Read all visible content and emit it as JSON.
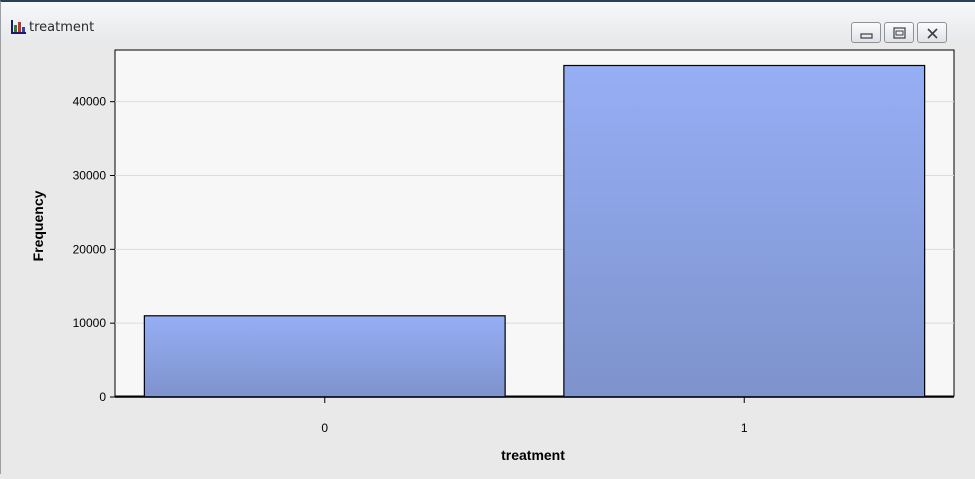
{
  "window": {
    "title": "treatment",
    "icon": "bar-chart-icon",
    "buttons": [
      "minimize",
      "restore",
      "close"
    ]
  },
  "chart_data": {
    "type": "bar",
    "title": "",
    "xlabel": "treatment",
    "ylabel": "Frequency",
    "categories": [
      "0",
      "1"
    ],
    "values": [
      11000,
      44900
    ],
    "ylim": [
      0,
      47000
    ],
    "yticks": [
      0,
      10000,
      20000,
      30000,
      40000
    ],
    "ytick_labels": [
      "0",
      "10000",
      "20000",
      "30000",
      "40000"
    ],
    "grid": true,
    "bar_color": "#8ea8e8",
    "bar_outline": "#000000",
    "plot_background": "#f7f7f7"
  }
}
